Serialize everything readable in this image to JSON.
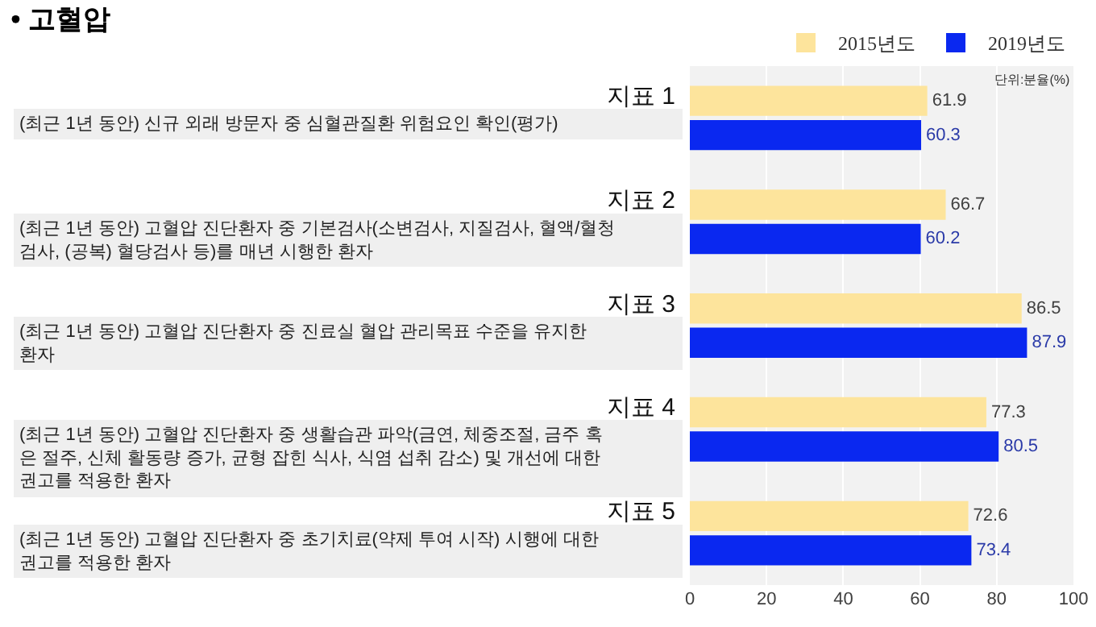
{
  "chart_data": {
    "type": "bar",
    "orientation": "horizontal",
    "title": "• 고혈압",
    "categories": [
      "지표 1",
      "지표 2",
      "지표 3",
      "지표 4",
      "지표 5"
    ],
    "series": [
      {
        "name": "2015년도",
        "color": "#fde49c",
        "values": [
          61.9,
          66.7,
          86.5,
          77.3,
          72.6
        ]
      },
      {
        "name": "2019년도",
        "color": "#0a28f0",
        "values": [
          60.3,
          60.2,
          87.9,
          80.5,
          73.4
        ]
      }
    ],
    "data_labels": true,
    "xlim": [
      0,
      100
    ],
    "xticks": [
      0,
      20,
      40,
      60,
      80,
      100
    ],
    "grid": "x",
    "legend": "top right",
    "annotations": [
      "(최근 1년 동안) 신규 외래 방문자 중 심혈관질환 위험요인 확인(평가)",
      "(최근 1년 동안) 고혈압 진단환자 중 기본검사(소변검사, 지질검사, 혈액/혈청\n검사, (공복) 혈당검사 등)를 매년 시행한 환자",
      "(최근 1년 동안) 고혈압 진단환자 중 진료실 혈압 관리목표 수준을 유지한\n환자",
      "(최근 1년 동안) 고혈압 진단환자 중 생활습관 파악(금연, 체중조절, 금주 혹\n은 절주, 신체 활동량 증가, 균형 잡힌 식사, 식염 섭취 감소) 및 개선에 대한\n권고를 적용한 환자",
      "(최근 1년 동안) 고혈압 진단환자 중 초기치료(약제 투여 시작) 시행에 대한\n권고를 적용한 환자",
      "단위:분율(%)"
    ]
  }
}
